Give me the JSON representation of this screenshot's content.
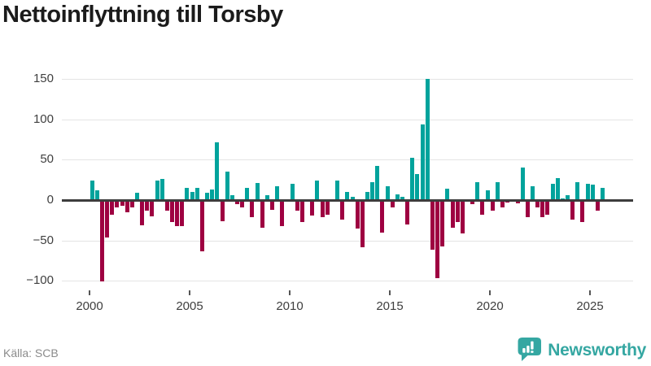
{
  "title": "Nettoinflyttning till Torsby",
  "source": "Källa: SCB",
  "logo": {
    "text": "Newsworthy",
    "icon": "bar-chart-speech-bubble-badge"
  },
  "colors": {
    "positive_bar": "#00a39c",
    "negative_bar": "#9e0041",
    "grid": "#e4e4e4",
    "zero_line": "#3d3d3d",
    "axis_text": "#3f3f3f",
    "title_text": "#1b1b1b",
    "source_text": "#8b8b8b",
    "logo_teal": "#35a7a2"
  },
  "chart_data": {
    "type": "bar",
    "title": "Nettoinflyttning till Torsby",
    "xlabel": "",
    "ylabel": "",
    "ylim": [
      -110,
      160
    ],
    "grid": true,
    "legend": "none",
    "x_tick_labels": [
      "2000",
      "2005",
      "2010",
      "2015",
      "2020",
      "2025"
    ],
    "y_ticks": [
      {
        "value": 150,
        "label": "150"
      },
      {
        "value": 100,
        "label": "100"
      },
      {
        "value": 50,
        "label": "50"
      },
      {
        "value": 0,
        "label": "0"
      },
      {
        "value": -50,
        "label": "−50"
      },
      {
        "value": -100,
        "label": "−100"
      }
    ],
    "series": [
      {
        "name": "Nettoinflyttning till Torsby (personer per kvartal)",
        "quarters": [
          "2000 Q1",
          "2000 Q2",
          "2000 Q3",
          "2000 Q4",
          "2001 Q1",
          "2001 Q2",
          "2001 Q3",
          "2001 Q4",
          "2002 Q1",
          "2002 Q2",
          "2002 Q3",
          "2002 Q4",
          "2003 Q1",
          "2003 Q2",
          "2003 Q3",
          "2003 Q4",
          "2004 Q1",
          "2004 Q2",
          "2004 Q3",
          "2004 Q4",
          "2005 Q1",
          "2005 Q2",
          "2005 Q3",
          "2005 Q4",
          "2006 Q1",
          "2006 Q2",
          "2006 Q3",
          "2006 Q4",
          "2007 Q1",
          "2007 Q2",
          "2007 Q3",
          "2007 Q4",
          "2008 Q1",
          "2008 Q2",
          "2008 Q3",
          "2008 Q4",
          "2009 Q1",
          "2009 Q2",
          "2009 Q3",
          "2009 Q4",
          "2010 Q1",
          "2010 Q2",
          "2010 Q3",
          "2010 Q4",
          "2011 Q1",
          "2011 Q2",
          "2011 Q3",
          "2011 Q4",
          "2012 Q1",
          "2012 Q2",
          "2012 Q3",
          "2012 Q4",
          "2013 Q1",
          "2013 Q2",
          "2013 Q3",
          "2013 Q4",
          "2014 Q1",
          "2014 Q2",
          "2014 Q3",
          "2014 Q4",
          "2015 Q1",
          "2015 Q2",
          "2015 Q3",
          "2015 Q4",
          "2016 Q1",
          "2016 Q2",
          "2016 Q3",
          "2016 Q4",
          "2017 Q1",
          "2017 Q2",
          "2017 Q3",
          "2017 Q4",
          "2018 Q1",
          "2018 Q2",
          "2018 Q3",
          "2018 Q4",
          "2019 Q1",
          "2019 Q2",
          "2019 Q3",
          "2019 Q4",
          "2020 Q1",
          "2020 Q2",
          "2020 Q3",
          "2020 Q4",
          "2021 Q1",
          "2021 Q2",
          "2021 Q3",
          "2021 Q4",
          "2022 Q1",
          "2022 Q2",
          "2022 Q3",
          "2022 Q4",
          "2023 Q1",
          "2023 Q2",
          "2023 Q3",
          "2023 Q4",
          "2024 Q1",
          "2024 Q2",
          "2024 Q3",
          "2024 Q4",
          "2025 Q1",
          "2025 Q2",
          "2025 Q3"
        ],
        "values": [
          24,
          12,
          -100,
          -45,
          -17,
          -8,
          -6,
          -14,
          -8,
          9,
          -30,
          -12,
          -19,
          24,
          26,
          -12,
          -26,
          -31,
          -31,
          15,
          10,
          15,
          -62,
          9,
          13,
          72,
          -25,
          35,
          6,
          -4,
          -8,
          15,
          -20,
          21,
          -33,
          6,
          -11,
          17,
          -31,
          0,
          20,
          -12,
          -26,
          0,
          -18,
          24,
          -20,
          -17,
          0,
          24,
          -23,
          10,
          4,
          -34,
          -57,
          10,
          22,
          42,
          -39,
          17,
          -8,
          7,
          4,
          -29,
          52,
          32,
          94,
          150,
          -60,
          -96,
          -56,
          14,
          -33,
          -26,
          -40,
          0,
          -4,
          22,
          -17,
          12,
          -12,
          22,
          -8,
          -2,
          0,
          -3,
          40,
          -20,
          17,
          -8,
          -20,
          -17,
          20,
          27,
          2,
          6,
          -23,
          22,
          -26,
          20,
          19,
          -12,
          15
        ]
      }
    ]
  }
}
